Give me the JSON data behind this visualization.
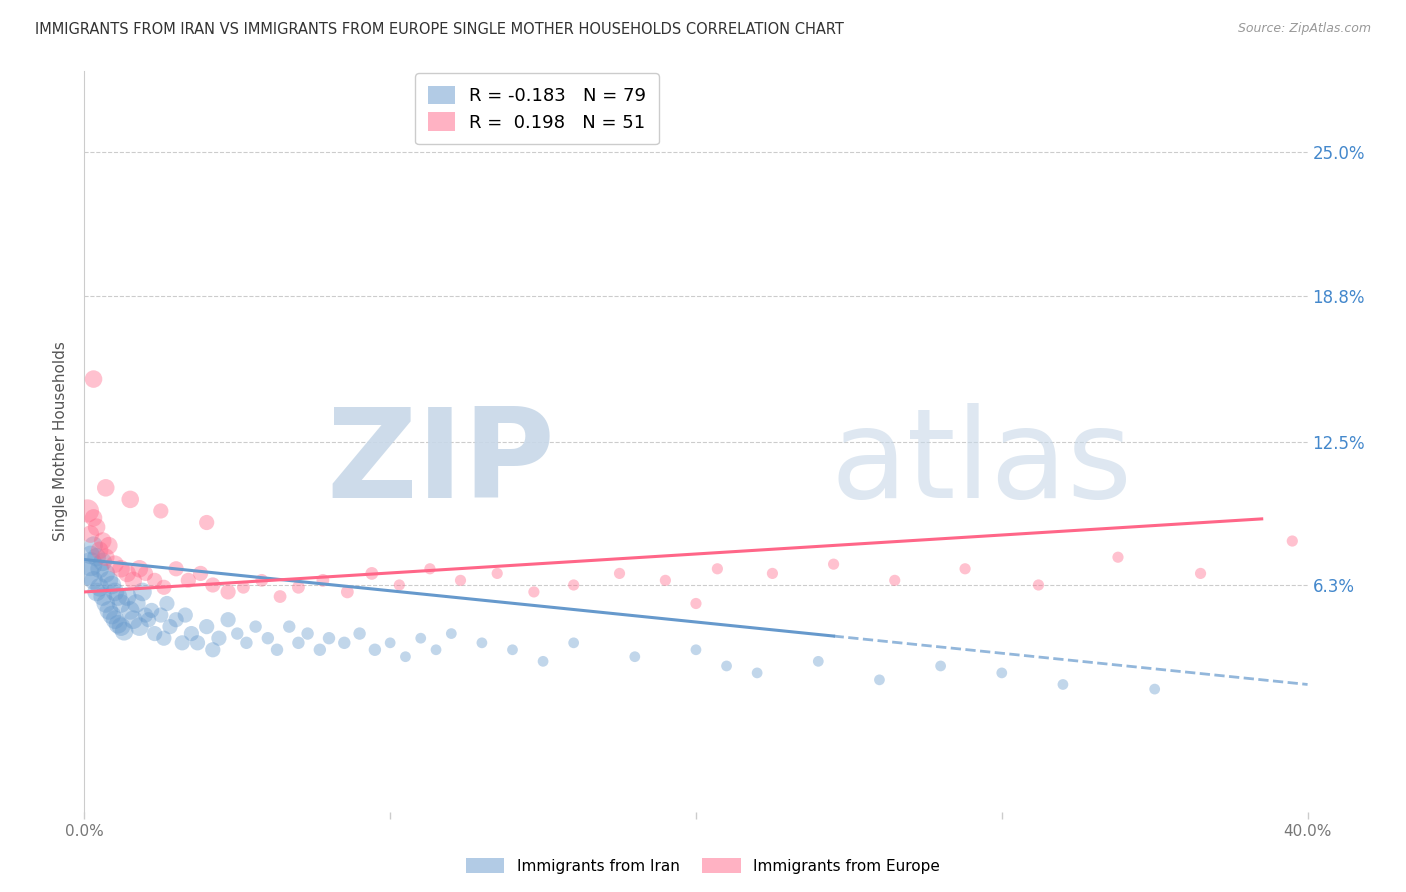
{
  "title": "IMMIGRANTS FROM IRAN VS IMMIGRANTS FROM EUROPE SINGLE MOTHER HOUSEHOLDS CORRELATION CHART",
  "source": "Source: ZipAtlas.com",
  "ylabel": "Single Mother Households",
  "ytick_labels": [
    "25.0%",
    "18.8%",
    "12.5%",
    "6.3%"
  ],
  "ytick_values": [
    0.25,
    0.188,
    0.125,
    0.063
  ],
  "xlim": [
    0.0,
    0.4
  ],
  "ylim": [
    -0.035,
    0.285
  ],
  "iran_color": "#6699CC",
  "europe_color": "#FF6688",
  "iran_R": -0.183,
  "iran_N": 79,
  "europe_R": 0.198,
  "europe_N": 51,
  "legend_label_iran": "Immigrants from Iran",
  "legend_label_europe": "Immigrants from Europe",
  "iran_trend_x0": 0.0,
  "iran_trend_x_solid_end": 0.245,
  "iran_trend_x_dash_end": 0.4,
  "iran_trend_y0": 0.074,
  "iran_trend_slope": -0.135,
  "europe_trend_x0": 0.0,
  "europe_trend_x_end": 0.385,
  "europe_trend_y0": 0.06,
  "europe_trend_slope": 0.082,
  "iran_points_x": [
    0.001,
    0.002,
    0.002,
    0.003,
    0.003,
    0.004,
    0.004,
    0.005,
    0.005,
    0.006,
    0.006,
    0.007,
    0.007,
    0.008,
    0.008,
    0.009,
    0.009,
    0.01,
    0.01,
    0.011,
    0.011,
    0.012,
    0.012,
    0.013,
    0.014,
    0.015,
    0.016,
    0.017,
    0.018,
    0.019,
    0.02,
    0.021,
    0.022,
    0.023,
    0.025,
    0.026,
    0.027,
    0.028,
    0.03,
    0.032,
    0.033,
    0.035,
    0.037,
    0.04,
    0.042,
    0.044,
    0.047,
    0.05,
    0.053,
    0.056,
    0.06,
    0.063,
    0.067,
    0.07,
    0.073,
    0.077,
    0.08,
    0.085,
    0.09,
    0.095,
    0.1,
    0.105,
    0.11,
    0.115,
    0.12,
    0.13,
    0.14,
    0.15,
    0.16,
    0.18,
    0.2,
    0.21,
    0.22,
    0.24,
    0.26,
    0.28,
    0.3,
    0.32,
    0.35
  ],
  "iran_points_y": [
    0.068,
    0.072,
    0.076,
    0.065,
    0.08,
    0.06,
    0.075,
    0.062,
    0.07,
    0.058,
    0.073,
    0.055,
    0.068,
    0.052,
    0.065,
    0.05,
    0.063,
    0.048,
    0.06,
    0.046,
    0.058,
    0.045,
    0.055,
    0.043,
    0.058,
    0.052,
    0.048,
    0.055,
    0.045,
    0.06,
    0.05,
    0.048,
    0.052,
    0.042,
    0.05,
    0.04,
    0.055,
    0.045,
    0.048,
    0.038,
    0.05,
    0.042,
    0.038,
    0.045,
    0.035,
    0.04,
    0.048,
    0.042,
    0.038,
    0.045,
    0.04,
    0.035,
    0.045,
    0.038,
    0.042,
    0.035,
    0.04,
    0.038,
    0.042,
    0.035,
    0.038,
    0.032,
    0.04,
    0.035,
    0.042,
    0.038,
    0.035,
    0.03,
    0.038,
    0.032,
    0.035,
    0.028,
    0.025,
    0.03,
    0.022,
    0.028,
    0.025,
    0.02,
    0.018
  ],
  "iran_sizes_base": 80,
  "europe_points_x": [
    0.001,
    0.002,
    0.003,
    0.004,
    0.005,
    0.006,
    0.007,
    0.008,
    0.01,
    0.012,
    0.014,
    0.016,
    0.018,
    0.02,
    0.023,
    0.026,
    0.03,
    0.034,
    0.038,
    0.042,
    0.047,
    0.052,
    0.058,
    0.064,
    0.07,
    0.078,
    0.086,
    0.094,
    0.103,
    0.113,
    0.123,
    0.135,
    0.147,
    0.16,
    0.175,
    0.19,
    0.207,
    0.225,
    0.245,
    0.265,
    0.288,
    0.312,
    0.338,
    0.365,
    0.395,
    0.003,
    0.007,
    0.015,
    0.025,
    0.04,
    0.2
  ],
  "europe_points_y": [
    0.095,
    0.085,
    0.092,
    0.088,
    0.078,
    0.082,
    0.075,
    0.08,
    0.072,
    0.07,
    0.068,
    0.065,
    0.07,
    0.068,
    0.065,
    0.062,
    0.07,
    0.065,
    0.068,
    0.063,
    0.06,
    0.062,
    0.065,
    0.058,
    0.062,
    0.065,
    0.06,
    0.068,
    0.063,
    0.07,
    0.065,
    0.068,
    0.06,
    0.063,
    0.068,
    0.065,
    0.07,
    0.068,
    0.072,
    0.065,
    0.07,
    0.063,
    0.075,
    0.068,
    0.082,
    0.152,
    0.105,
    0.1,
    0.095,
    0.09,
    0.055
  ],
  "europe_sizes_base": 80
}
